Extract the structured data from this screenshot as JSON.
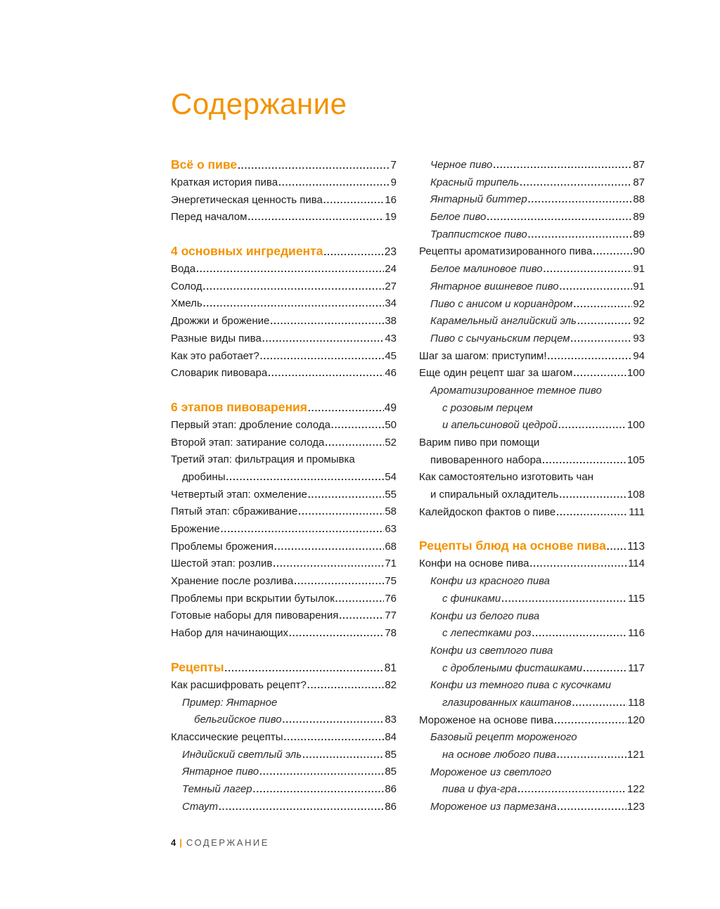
{
  "title": "Содержание",
  "accent_color": "#f39200",
  "footer": {
    "page_number": "4",
    "separator": "|",
    "label": "СОДЕРЖАНИЕ"
  },
  "columns": [
    {
      "sections": [
        {
          "heading": {
            "text": "Всё о пиве",
            "page": "7"
          },
          "items": [
            {
              "text": "Краткая история пива",
              "page": "9",
              "level": 0,
              "italic": false
            },
            {
              "text": "Энергетическая ценность пива",
              "page": "16",
              "level": 0,
              "italic": false
            },
            {
              "text": "Перед началом",
              "page": "19",
              "level": 0,
              "italic": false
            }
          ]
        },
        {
          "heading": {
            "text": "4 основных ингредиента",
            "page": "23"
          },
          "items": [
            {
              "text": "Вода",
              "page": "24",
              "level": 0,
              "italic": false
            },
            {
              "text": "Солод",
              "page": "27",
              "level": 0,
              "italic": false
            },
            {
              "text": "Хмель",
              "page": "34",
              "level": 0,
              "italic": false
            },
            {
              "text": "Дрожжи и брожение",
              "page": "38",
              "level": 0,
              "italic": false
            },
            {
              "text": "Разные виды пива",
              "page": "43",
              "level": 0,
              "italic": false
            },
            {
              "text": "Как это работает?",
              "page": "45",
              "level": 0,
              "italic": false
            },
            {
              "text": "Словарик пивовара",
              "page": "46",
              "level": 0,
              "italic": false
            }
          ]
        },
        {
          "heading": {
            "text": "6 этапов пивоварения",
            "page": "49"
          },
          "items": [
            {
              "text": "Первый этап: дробление солода",
              "page": "50",
              "level": 0,
              "italic": false
            },
            {
              "text": "Второй этап: затирание солода",
              "page": "52",
              "level": 0,
              "italic": false
            },
            {
              "text": "Третий этап: фильтрация и промывка",
              "page": null,
              "level": 0,
              "italic": false
            },
            {
              "text": "дробины",
              "page": "54",
              "level": 1,
              "italic": false
            },
            {
              "text": "Четвертый этап: охмеление",
              "page": "55",
              "level": 0,
              "italic": false
            },
            {
              "text": "Пятый этап: сбраживание",
              "page": "58",
              "level": 0,
              "italic": false
            },
            {
              "text": "Брожение",
              "page": "63",
              "level": 0,
              "italic": false
            },
            {
              "text": "Проблемы брожения",
              "page": "68",
              "level": 0,
              "italic": false
            },
            {
              "text": "Шестой этап: розлив",
              "page": "71",
              "level": 0,
              "italic": false
            },
            {
              "text": "Хранение после розлива",
              "page": "75",
              "level": 0,
              "italic": false
            },
            {
              "text": "Проблемы при вскрытии бутылок",
              "page": "76",
              "level": 0,
              "italic": false
            },
            {
              "text": "Готовые наборы для пивоварения",
              "page": "77",
              "level": 0,
              "italic": false
            },
            {
              "text": "Набор для начинающих",
              "page": "78",
              "level": 0,
              "italic": false
            }
          ]
        },
        {
          "heading": {
            "text": "Рецепты",
            "page": "81"
          },
          "items": [
            {
              "text": "Как расшифровать рецепт?",
              "page": "82",
              "level": 0,
              "italic": false
            },
            {
              "text": "Пример: Янтарное",
              "page": null,
              "level": 1,
              "italic": true
            },
            {
              "text": "бельгийское пиво",
              "page": "83",
              "level": 2,
              "italic": true
            },
            {
              "text": "Классические рецепты",
              "page": "84",
              "level": 0,
              "italic": false
            },
            {
              "text": "Индийский светлый эль",
              "page": "85",
              "level": 1,
              "italic": true
            },
            {
              "text": "Янтарное пиво",
              "page": "85",
              "level": 1,
              "italic": true
            },
            {
              "text": "Темный лагер",
              "page": "86",
              "level": 1,
              "italic": true
            },
            {
              "text": "Стаут",
              "page": "86",
              "level": 1,
              "italic": true
            }
          ]
        }
      ]
    },
    {
      "sections": [
        {
          "heading": null,
          "items": [
            {
              "text": "Черное пиво",
              "page": "87",
              "level": 1,
              "italic": true
            },
            {
              "text": "Красный трипель",
              "page": "87",
              "level": 1,
              "italic": true
            },
            {
              "text": "Янтарный биттер",
              "page": "88",
              "level": 1,
              "italic": true
            },
            {
              "text": "Белое пиво",
              "page": "89",
              "level": 1,
              "italic": true
            },
            {
              "text": "Траппистское пиво",
              "page": "89",
              "level": 1,
              "italic": true
            },
            {
              "text": "Рецепты ароматизированного пива",
              "page": "90",
              "level": 0,
              "italic": false
            },
            {
              "text": "Белое малиновое пиво",
              "page": "91",
              "level": 1,
              "italic": true
            },
            {
              "text": "Янтарное вишневое пиво",
              "page": "91",
              "level": 1,
              "italic": true
            },
            {
              "text": "Пиво с анисом и кориандром",
              "page": "92",
              "level": 1,
              "italic": true
            },
            {
              "text": "Карамельный английский эль",
              "page": "92",
              "level": 1,
              "italic": true
            },
            {
              "text": "Пиво с сычуаньским перцем",
              "page": "93",
              "level": 1,
              "italic": true
            },
            {
              "text": "Шаг за шагом: приступим!",
              "page": "94",
              "level": 0,
              "italic": false
            },
            {
              "text": "Еще один рецепт шаг за шагом",
              "page": "100",
              "level": 0,
              "italic": false
            },
            {
              "text": "Ароматизированное темное пиво",
              "page": null,
              "level": 1,
              "italic": true
            },
            {
              "text": "с розовым перцем",
              "page": null,
              "level": 2,
              "italic": true
            },
            {
              "text": "и апельсиновой цедрой",
              "page": "100",
              "level": 2,
              "italic": true
            },
            {
              "text": "Варим пиво при помощи",
              "page": null,
              "level": 0,
              "italic": false
            },
            {
              "text": "пивоваренного набора",
              "page": "105",
              "level": 1,
              "italic": false
            },
            {
              "text": "Как самостоятельно изготовить чан",
              "page": null,
              "level": 0,
              "italic": false
            },
            {
              "text": "и спиральный охладитель",
              "page": "108",
              "level": 1,
              "italic": false
            },
            {
              "text": "Калейдоскоп фактов о пиве",
              "page": "111",
              "level": 0,
              "italic": false
            }
          ]
        },
        {
          "heading": {
            "text": "Рецепты блюд на основе пива",
            "page": "113"
          },
          "items": [
            {
              "text": "Конфи на основе пива",
              "page": "114",
              "level": 0,
              "italic": false
            },
            {
              "text": "Конфи из красного пива",
              "page": null,
              "level": 1,
              "italic": true
            },
            {
              "text": "с финиками",
              "page": "115",
              "level": 2,
              "italic": true
            },
            {
              "text": "Конфи из белого пива",
              "page": null,
              "level": 1,
              "italic": true
            },
            {
              "text": "с лепестками роз",
              "page": "116",
              "level": 2,
              "italic": true
            },
            {
              "text": "Конфи из светлого пива",
              "page": null,
              "level": 1,
              "italic": true
            },
            {
              "text": "с дроблеными фисташками",
              "page": "117",
              "level": 2,
              "italic": true
            },
            {
              "text": "Конфи из темного пива с кусочками",
              "page": null,
              "level": 1,
              "italic": true
            },
            {
              "text": "глазированных каштанов",
              "page": "118",
              "level": 2,
              "italic": true
            },
            {
              "text": "Мороженое на основе пива",
              "page": "120",
              "level": 0,
              "italic": false
            },
            {
              "text": "Базовый рецепт мороженого",
              "page": null,
              "level": 1,
              "italic": true
            },
            {
              "text": "на основе любого пива",
              "page": "121",
              "level": 2,
              "italic": true
            },
            {
              "text": "Мороженое из светлого",
              "page": null,
              "level": 1,
              "italic": true
            },
            {
              "text": "пива и фуа-гра",
              "page": "122",
              "level": 2,
              "italic": true
            },
            {
              "text": "Мороженое из пармезана",
              "page": "123",
              "level": 1,
              "italic": true
            }
          ]
        }
      ]
    }
  ]
}
